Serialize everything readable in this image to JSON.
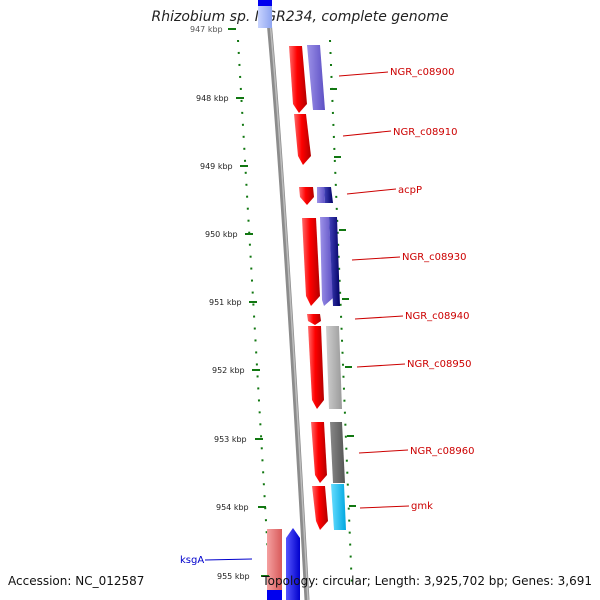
{
  "title": "Rhizobium sp. NGR234, complete genome",
  "footer": {
    "accession": "Accession: NC_012587",
    "summary": "Topology: circular; Length: 3,925,702 bp; Genes: 3,691"
  },
  "ticks": [
    {
      "label": "947 kbp"
    },
    {
      "label": "948 kbp"
    },
    {
      "label": "949 kbp"
    },
    {
      "label": "950 kbp"
    },
    {
      "label": "951 kbp"
    },
    {
      "label": "952 kbp"
    },
    {
      "label": "953 kbp"
    },
    {
      "label": "954 kbp"
    },
    {
      "label": "955 kbp"
    }
  ],
  "gene_labels_right": [
    "NGR_c08900",
    "NGR_c08910",
    "acpP",
    "NGR_c08930",
    "NGR_c08940",
    "NGR_c08950",
    "NGR_c08960",
    "gmk"
  ],
  "gene_labels_left": [
    "ksgA"
  ],
  "colors": {
    "backbone": "#8c8c8c",
    "cds": "#ff0000",
    "right_label": "#cc0000",
    "left_label": "#0000cc",
    "tick": "#117711",
    "orf_left": "#0000ff",
    "orf_left_light": "#ee6666"
  }
}
